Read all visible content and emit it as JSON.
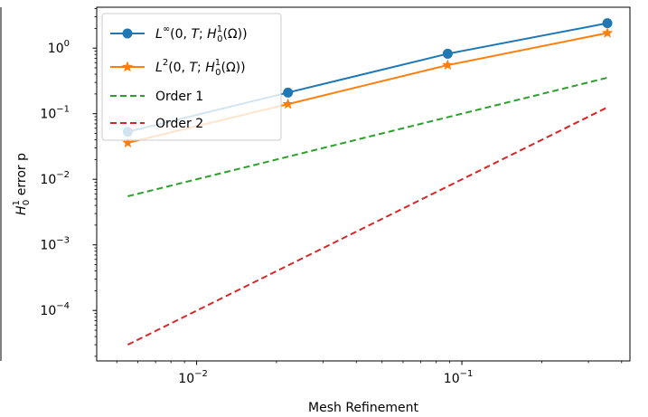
{
  "chart_data": {
    "type": "line",
    "xlabel": "Mesh Refinement",
    "ylabel": "H_0^1 error p",
    "xscale": "log",
    "yscale": "log",
    "xlim": [
      0.0042,
      0.43
    ],
    "ylim": [
      1.7e-05,
      4.2
    ],
    "grid": false,
    "legend_position": "top-left",
    "series": [
      {
        "name": "L∞(0,T; H₀¹(Ω))",
        "color": "#1f77b4",
        "style": "solid",
        "marker": "circle",
        "x": [
          0.0055,
          0.0221,
          0.0884,
          0.3536
        ],
        "y": [
          0.053,
          0.21,
          0.82,
          2.4
        ]
      },
      {
        "name": "L²(0,T; H₀¹(Ω))",
        "color": "#ff7f0e",
        "style": "solid",
        "marker": "star",
        "x": [
          0.0055,
          0.0221,
          0.0884,
          0.3536
        ],
        "y": [
          0.036,
          0.14,
          0.55,
          1.7
        ]
      },
      {
        "name": "Order 1",
        "color": "#2ca02c",
        "style": "dashed",
        "marker": "none",
        "x": [
          0.0055,
          0.3536
        ],
        "y": [
          0.0055,
          0.3536
        ]
      },
      {
        "name": "Order 2",
        "color": "#d62728",
        "style": "dashed",
        "marker": "none",
        "x": [
          0.0055,
          0.3536
        ],
        "y": [
          3e-05,
          0.125
        ]
      }
    ],
    "x_ticks": [
      {
        "value": 0.01,
        "label": "10",
        "exp": "−2"
      },
      {
        "value": 0.1,
        "label": "10",
        "exp": "−1"
      }
    ],
    "y_ticks": [
      {
        "value": 0.0001,
        "label": "10",
        "exp": "−4"
      },
      {
        "value": 0.001,
        "label": "10",
        "exp": "−3"
      },
      {
        "value": 0.01,
        "label": "10",
        "exp": "−2"
      },
      {
        "value": 0.1,
        "label": "10",
        "exp": "−1"
      },
      {
        "value": 1,
        "label": "10",
        "exp": "0"
      }
    ]
  }
}
